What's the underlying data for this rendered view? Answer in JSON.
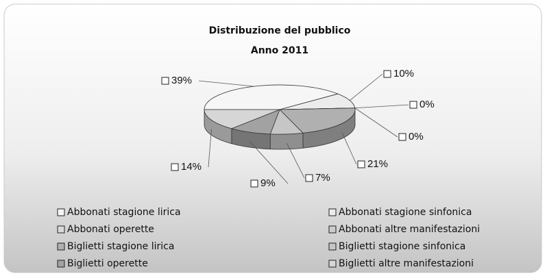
{
  "chart_data": {
    "type": "pie",
    "title": "Distribuzione del pubblico",
    "subtitle": "Anno 2011",
    "categories": [
      "Abbonati stagione lirica",
      "Abbonati stagione sinfonica",
      "Abbonati operette",
      "Abbonati altre manifestazioni",
      "Biglietti stagione lirica",
      "Biglietti stagione sinfonica",
      "Biglietti operette",
      "Biglietti altre manifestazioni"
    ],
    "values": [
      39,
      10,
      0,
      0,
      21,
      7,
      9,
      14
    ],
    "value_labels": [
      "39%",
      "10%",
      "0%",
      "0%",
      "21%",
      "7%",
      "9%",
      "14%"
    ],
    "colors": [
      "#f6f6f6",
      "#ececec",
      "#dadada",
      "#cccccc",
      "#b0b0b0",
      "#c6c6c6",
      "#a2a2a2",
      "#d6d6d6"
    ],
    "legend": "bottom"
  }
}
